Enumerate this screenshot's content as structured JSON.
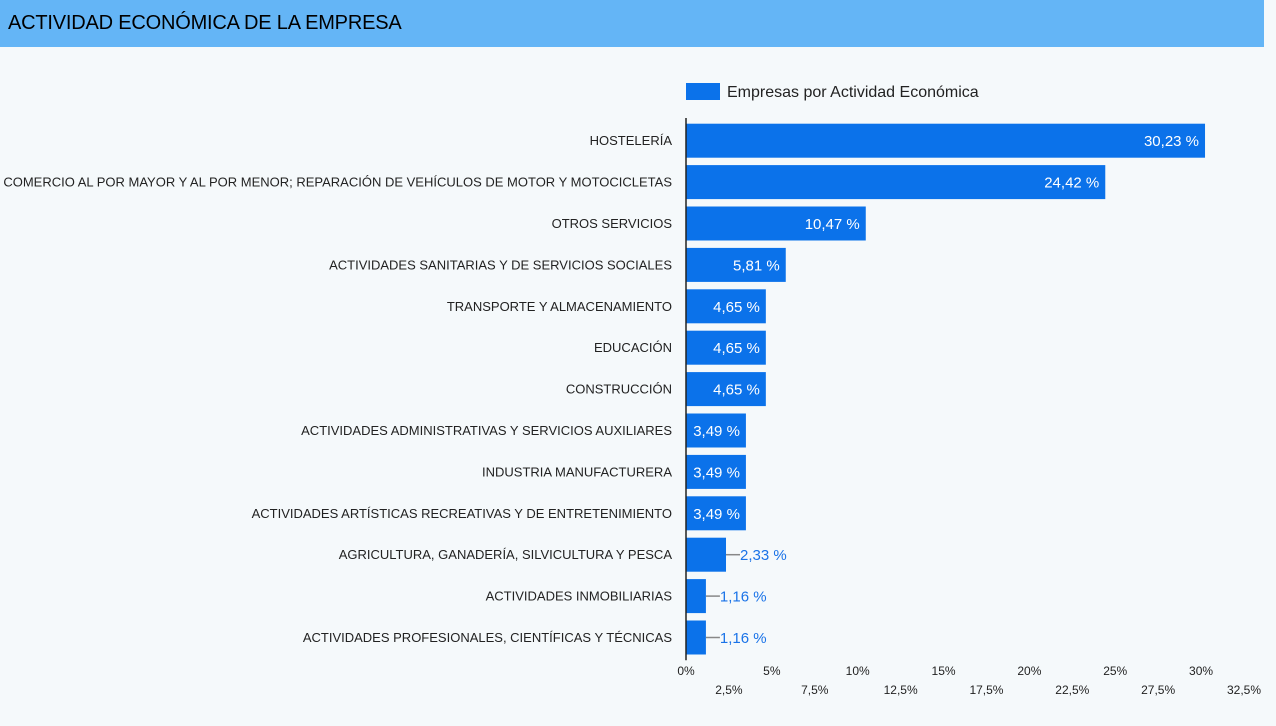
{
  "header": {
    "title": "ACTIVIDAD ECONÓMICA DE LA EMPRESA"
  },
  "colors": {
    "header_bg": "#64b5f6",
    "bar": "#0b72ea",
    "outside_label": "#1a73e8"
  },
  "chart_data": {
    "type": "bar",
    "orientation": "horizontal",
    "legend": {
      "position": "top",
      "entries": [
        "Empresas por Actividad Económica"
      ]
    },
    "categories": [
      "HOSTELERÍA",
      "COMERCIO AL POR MAYOR Y AL POR MENOR; REPARACIÓN DE VEHÍCULOS DE MOTOR Y MOTOCICLETAS",
      "OTROS SERVICIOS",
      "ACTIVIDADES SANITARIAS Y DE SERVICIOS SOCIALES",
      "TRANSPORTE Y ALMACENAMIENTO",
      "EDUCACIÓN",
      "CONSTRUCCIÓN",
      "ACTIVIDADES ADMINISTRATIVAS Y SERVICIOS AUXILIARES",
      "INDUSTRIA MANUFACTURERA",
      "ACTIVIDADES ARTÍSTICAS RECREATIVAS Y DE ENTRETENIMIENTO",
      "AGRICULTURA, GANADERÍA, SILVICULTURA Y PESCA",
      "ACTIVIDADES INMOBILIARIAS",
      "ACTIVIDADES PROFESIONALES, CIENTÍFICAS Y TÉCNICAS"
    ],
    "series": [
      {
        "name": "Empresas por Actividad Económica",
        "values": [
          30.23,
          24.42,
          10.47,
          5.81,
          4.65,
          4.65,
          4.65,
          3.49,
          3.49,
          3.49,
          2.33,
          1.16,
          1.16
        ],
        "labels": [
          "30,23 %",
          "24,42 %",
          "10,47 %",
          "5,81 %",
          "4,65 %",
          "4,65 %",
          "4,65 %",
          "3,49 %",
          "3,49 %",
          "3,49 %",
          "2,33 %",
          "1,16 %",
          "1,16 %"
        ]
      }
    ],
    "xlim": [
      0,
      32.5
    ],
    "xticks": [
      {
        "value": 0,
        "label": "0%"
      },
      {
        "value": 2.5,
        "label": "2,5%"
      },
      {
        "value": 5,
        "label": "5%"
      },
      {
        "value": 7.5,
        "label": "7,5%"
      },
      {
        "value": 10,
        "label": "10%"
      },
      {
        "value": 12.5,
        "label": "12,5%"
      },
      {
        "value": 15,
        "label": "15%"
      },
      {
        "value": 17.5,
        "label": "17,5%"
      },
      {
        "value": 20,
        "label": "20%"
      },
      {
        "value": 22.5,
        "label": "22,5%"
      },
      {
        "value": 25,
        "label": "25%"
      },
      {
        "value": 27.5,
        "label": "27,5%"
      },
      {
        "value": 30,
        "label": "30%"
      },
      {
        "value": 32.5,
        "label": "32,5%"
      }
    ],
    "grid": false
  }
}
